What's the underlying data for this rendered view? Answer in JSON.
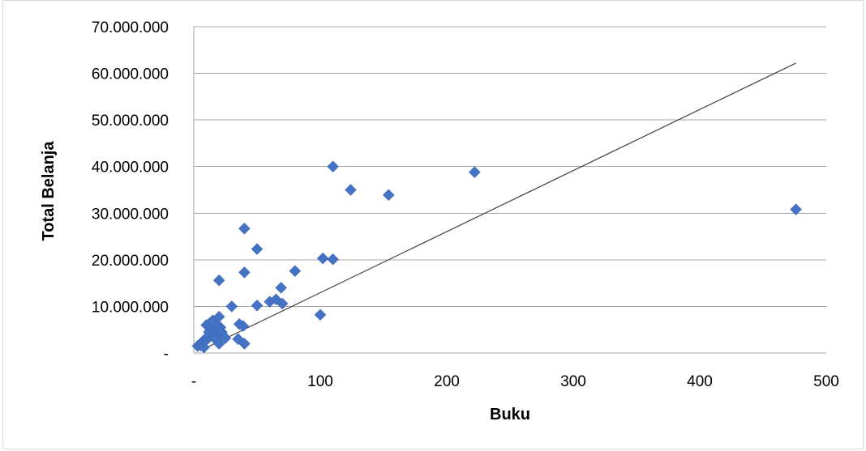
{
  "chart_data": {
    "type": "scatter",
    "title": "",
    "xlabel": "Buku",
    "ylabel": "Total Belanja",
    "xlim": [
      0,
      500
    ],
    "ylim": [
      0,
      70000000
    ],
    "x_ticks": [
      0,
      100,
      200,
      300,
      400,
      500
    ],
    "x_tick_labels": [
      "-",
      "100",
      "200",
      "300",
      "400",
      "500"
    ],
    "y_ticks": [
      0,
      10000000,
      20000000,
      30000000,
      40000000,
      50000000,
      60000000,
      70000000
    ],
    "y_tick_labels": [
      "-",
      "10.000.000",
      "20.000.000",
      "30.000.000",
      "40.000.000",
      "50.000.000",
      "60.000.000",
      "70.000.000"
    ],
    "grid": "horizontal",
    "legend": "none",
    "marker": "diamond",
    "colors": {
      "points": "#4472C4",
      "trendline": "#404040",
      "grid": "#a6a6a6"
    },
    "series": [
      {
        "points": [
          [
            3,
            1500000
          ],
          [
            5,
            1800000
          ],
          [
            6,
            2200000
          ],
          [
            7,
            2500000
          ],
          [
            8,
            1200000
          ],
          [
            9,
            3000000
          ],
          [
            10,
            6000000
          ],
          [
            10,
            2800000
          ],
          [
            11,
            3500000
          ],
          [
            12,
            4500000
          ],
          [
            13,
            6500000
          ],
          [
            14,
            5500000
          ],
          [
            15,
            7000000
          ],
          [
            16,
            4000000
          ],
          [
            17,
            3000000
          ],
          [
            18,
            6000000
          ],
          [
            19,
            5000000
          ],
          [
            20,
            15600000
          ],
          [
            20,
            2000000
          ],
          [
            20,
            7800000
          ],
          [
            21,
            5500000
          ],
          [
            22,
            4500000
          ],
          [
            23,
            3800000
          ],
          [
            25,
            3200000
          ],
          [
            30,
            10000000
          ],
          [
            35,
            3000000
          ],
          [
            36,
            6200000
          ],
          [
            39,
            5800000
          ],
          [
            40,
            26700000
          ],
          [
            40,
            17300000
          ],
          [
            40,
            2000000
          ],
          [
            50,
            22300000
          ],
          [
            50,
            10200000
          ],
          [
            60,
            11000000
          ],
          [
            65,
            11500000
          ],
          [
            69,
            14000000
          ],
          [
            70,
            10600000
          ],
          [
            80,
            17600000
          ],
          [
            100,
            8200000
          ],
          [
            102,
            20300000
          ],
          [
            110,
            40000000
          ],
          [
            110,
            20100000
          ],
          [
            124,
            35000000
          ],
          [
            154,
            33900000
          ],
          [
            222,
            38800000
          ],
          [
            476,
            30800000
          ]
        ]
      }
    ],
    "trendline": {
      "x": [
        5,
        476
      ],
      "y": [
        500000,
        62200000
      ]
    }
  }
}
